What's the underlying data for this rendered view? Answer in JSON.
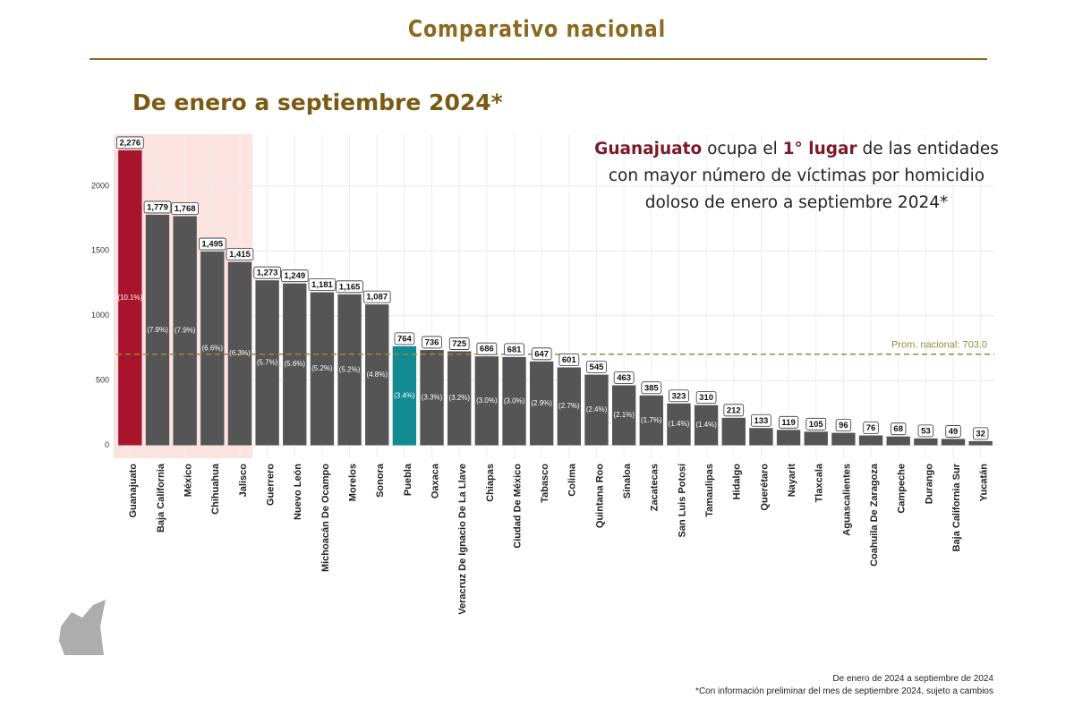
{
  "header": {
    "title": "Comparativo nacional",
    "subtitle": "De enero a septiembre 2024*"
  },
  "annotation_lines": [
    [
      {
        "text": "Guanajuato",
        "color": "#7a1a2a",
        "bold": true
      },
      {
        "text": " ocupa el "
      },
      {
        "text": "1° lugar",
        "color": "#7a1a2a",
        "bold": true
      },
      {
        "text": " de las entidades"
      }
    ],
    [
      {
        "text": "con mayor número de víctimas por homicidio"
      }
    ],
    [
      {
        "text": "doloso de enero a septiembre 2024*"
      }
    ]
  ],
  "footnotes": [
    "De enero de 2024 a septiembre de 2024",
    "*Con información preliminar del mes de septiembre 2024, sujeto a cambios"
  ],
  "chart_data": {
    "type": "bar",
    "categories": [
      "Guanajuato",
      "Baja California",
      "México",
      "Chihuahua",
      "Jalisco",
      "Guerrero",
      "Nuevo León",
      "Michoacán De Ocampo",
      "Morelos",
      "Sonora",
      "Puebla",
      "Oaxaca",
      "Veracruz De Ignacio De La Llave",
      "Chiapas",
      "Ciudad De México",
      "Tabasco",
      "Colima",
      "Quintana Roo",
      "Sinaloa",
      "Zacatecas",
      "San Luis Potosí",
      "Tamaulipas",
      "Hidalgo",
      "Querétaro",
      "Nayarit",
      "Tlaxcala",
      "Aguascalientes",
      "Coahuila De Zaragoza",
      "Campeche",
      "Durango",
      "Baja California Sur",
      "Yucatán"
    ],
    "values": [
      2276,
      1779,
      1768,
      1495,
      1415,
      1273,
      1249,
      1181,
      1165,
      1087,
      764,
      736,
      725,
      686,
      681,
      647,
      601,
      545,
      463,
      385,
      323,
      310,
      212,
      133,
      119,
      105,
      96,
      76,
      68,
      53,
      49,
      32
    ],
    "value_labels": [
      "2,276",
      "1,779",
      "1,768",
      "1,495",
      "1,415",
      "1,273",
      "1,249",
      "1,181",
      "1,165",
      "1,087",
      "764",
      "736",
      "725",
      "686",
      "681",
      "647",
      "601",
      "545",
      "463",
      "385",
      "323",
      "310",
      "212",
      "133",
      "119",
      "105",
      "96",
      "76",
      "68",
      "53",
      "49",
      "32"
    ],
    "shares": [
      10.1,
      7.9,
      7.9,
      6.6,
      6.3,
      5.7,
      5.6,
      5.2,
      5.2,
      4.8,
      3.4,
      3.3,
      3.2,
      3.0,
      3.0,
      2.9,
      2.7,
      2.4,
      2.1,
      1.7,
      1.4,
      1.4,
      null,
      null,
      null,
      null,
      null,
      null,
      null,
      null,
      null,
      null
    ],
    "share_labels": [
      "(10.1%)",
      "(7.9%)",
      "(7.9%)",
      "(6.6%)",
      "(6.3%)",
      "(5.7%)",
      "(5.6%)",
      "(5.2%)",
      "(5.2%)",
      "(4.8%)",
      "(3.4%)",
      "(3.3%)",
      "(3.2%)",
      "(3.0%)",
      "(3.0%)",
      "(2.9%)",
      "(2.7%)",
      "(2.4%)",
      "(2.1%)",
      "(1.7%)",
      "(1.4%)",
      "(1.4%)",
      null,
      null,
      null,
      null,
      null,
      null,
      null,
      null,
      null,
      null
    ],
    "colors": [
      "#a8142c",
      "#555555",
      "#555555",
      "#555555",
      "#555555",
      "#555555",
      "#555555",
      "#555555",
      "#555555",
      "#555555",
      "#128a92",
      "#555555",
      "#555555",
      "#555555",
      "#555555",
      "#555555",
      "#555555",
      "#555555",
      "#555555",
      "#555555",
      "#555555",
      "#555555",
      "#555555",
      "#555555",
      "#555555",
      "#555555",
      "#555555",
      "#555555",
      "#555555",
      "#555555",
      "#555555",
      "#555555"
    ],
    "ylim": [
      -100,
      2400
    ],
    "yticks": [
      0,
      500,
      1000,
      1500,
      2000
    ],
    "grid": true,
    "highlight": {
      "first": 5,
      "color": "#fde2e2"
    },
    "average": {
      "value": 703,
      "label": "Prom. nacional: 703.0",
      "color": "#9a8a3a"
    }
  }
}
